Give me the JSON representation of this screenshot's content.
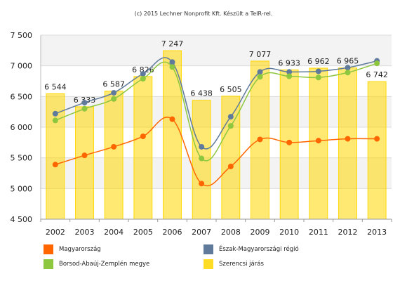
{
  "chart_data": {
    "type": "bar",
    "title": "(c) 2015 Lechner Nonprofit Kft. Készült a TeIR-rel.",
    "xlabel": "",
    "ylabel": "",
    "categories": [
      "2002",
      "2003",
      "2004",
      "2005",
      "2006",
      "2007",
      "2008",
      "2009",
      "2010",
      "2011",
      "2012",
      "2013"
    ],
    "ylim": [
      4500,
      7500
    ],
    "yticks": [
      4500,
      5000,
      5500,
      6000,
      6500,
      7000,
      7500
    ],
    "ytick_labels": [
      "4 500",
      "5 000",
      "5 500",
      "6 000",
      "6 500",
      "7 000",
      "7 500"
    ],
    "grid": true,
    "legend_placement": "bottom",
    "bar_series": {
      "name": "Szerencsi járás",
      "color": "#ffd700",
      "values": [
        6544,
        6333,
        6587,
        6826,
        7247,
        6438,
        6505,
        7077,
        6933,
        6962,
        6965,
        6742
      ],
      "labels": [
        "6 544",
        "6 333",
        "6 587",
        "6 826",
        "7 247",
        "6 438",
        "6 505",
        "7 077",
        "6 933",
        "6 962",
        "6 965",
        "6 742"
      ]
    },
    "line_series": [
      {
        "name": "Magyarország",
        "color": "#ff6600",
        "values": [
          5390,
          5540,
          5680,
          5850,
          6130,
          5080,
          5360,
          5800,
          5750,
          5780,
          5810,
          5810
        ]
      },
      {
        "name": "Észak-Magyarországi régió",
        "color": "#5f7a9b",
        "values": [
          6220,
          6400,
          6560,
          6870,
          7060,
          5680,
          6170,
          6900,
          6900,
          6910,
          6970,
          7080
        ]
      },
      {
        "name": "Borsod-Abaúj-Zemplén megye",
        "color": "#8dc63f",
        "values": [
          6110,
          6300,
          6460,
          6790,
          6980,
          5490,
          6020,
          6820,
          6830,
          6810,
          6890,
          7040
        ]
      }
    ],
    "legend": {
      "items": [
        {
          "label": "Magyarország",
          "color": "#ff6600"
        },
        {
          "label": "Észak-Magyarországi régió",
          "color": "#5f7a9b"
        },
        {
          "label": "Borsod-Abaúj-Zemplén megye",
          "color": "#8dc63f"
        },
        {
          "label": "Szerencsi járás",
          "color": "#ffd700"
        }
      ]
    }
  }
}
